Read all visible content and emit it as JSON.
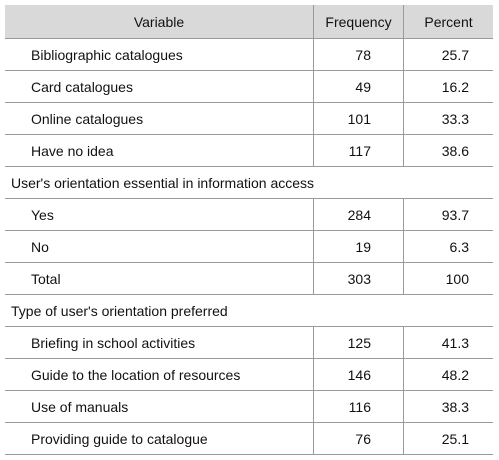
{
  "header": {
    "variable": "Variable",
    "frequency": "Frequency",
    "percent": "Percent"
  },
  "group1": {
    "rows": [
      {
        "label": "Bibliographic catalogues",
        "frequency": "78",
        "percent": "25.7"
      },
      {
        "label": "Card catalogues",
        "frequency": "49",
        "percent": "16.2"
      },
      {
        "label": "Online catalogues",
        "frequency": "101",
        "percent": "33.3"
      },
      {
        "label": "Have no idea",
        "frequency": "117",
        "percent": "38.6"
      }
    ]
  },
  "group2": {
    "title": "User's orientation essential in information access",
    "rows": [
      {
        "label": "Yes",
        "frequency": "284",
        "percent": "93.7"
      },
      {
        "label": "No",
        "frequency": "19",
        "percent": "6.3"
      },
      {
        "label": "Total",
        "frequency": "303",
        "percent": "100"
      }
    ]
  },
  "group3": {
    "title": "Type of user's orientation preferred",
    "rows": [
      {
        "label": "Briefing in school activities",
        "frequency": "125",
        "percent": "41.3"
      },
      {
        "label": "Guide to the location of resources",
        "frequency": "146",
        "percent": "48.2"
      },
      {
        "label": "Use of manuals",
        "frequency": "116",
        "percent": "38.3"
      },
      {
        "label": "Providing guide to catalogue",
        "frequency": "76",
        "percent": "25.1"
      }
    ]
  }
}
